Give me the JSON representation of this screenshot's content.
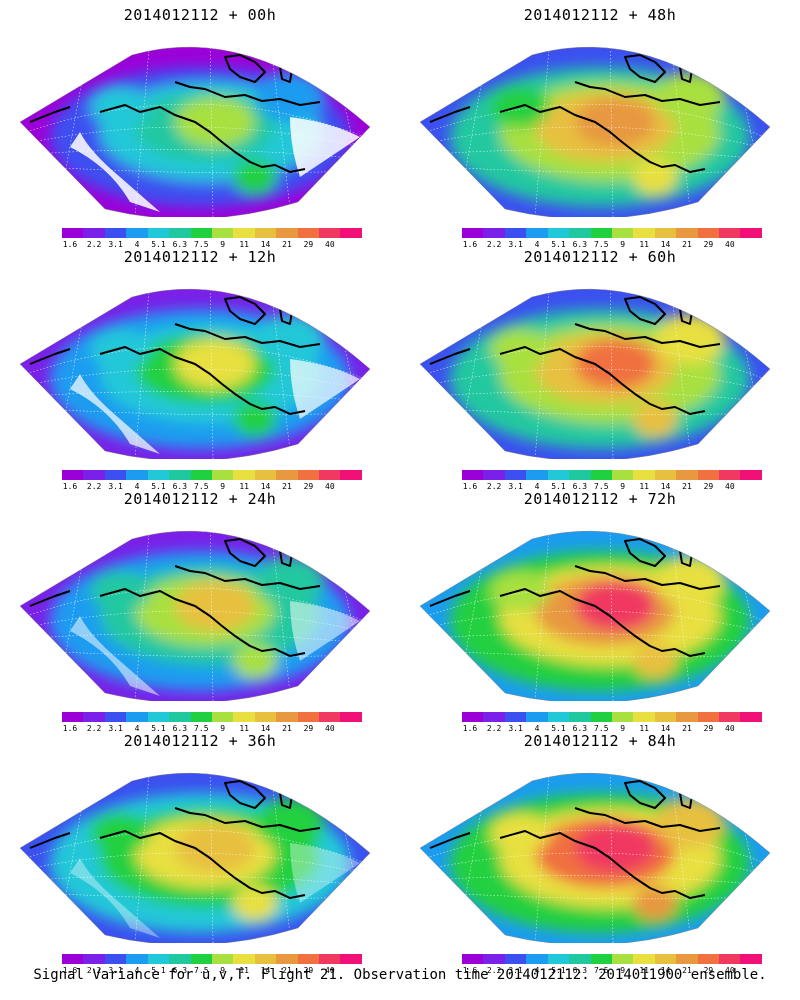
{
  "panels": [
    {
      "title": "2014012112 + 00h",
      "intensity": 0.1
    },
    {
      "title": "2014012112 + 48h",
      "intensity": 0.55
    },
    {
      "title": "2014012112 + 12h",
      "intensity": 0.2
    },
    {
      "title": "2014012112 + 60h",
      "intensity": 0.62
    },
    {
      "title": "2014012112 + 24h",
      "intensity": 0.32
    },
    {
      "title": "2014012112 + 72h",
      "intensity": 0.7
    },
    {
      "title": "2014012112 + 36h",
      "intensity": 0.42
    },
    {
      "title": "2014012112 + 84h",
      "intensity": 0.78
    }
  ],
  "colorbar": {
    "colors": [
      "#9c00d8",
      "#7a20e8",
      "#3c50f0",
      "#1c9cf0",
      "#20c8d8",
      "#20c8a0",
      "#20d040",
      "#a8e040",
      "#e8e040",
      "#e8c040",
      "#e89840",
      "#f07040",
      "#f03860",
      "#f01078"
    ],
    "labels": [
      "1.6",
      "2.2",
      "3.1",
      "4",
      "5.1",
      "6.3",
      "7.5",
      "9",
      "11",
      "14",
      "21",
      "29",
      "40"
    ]
  },
  "caption": "Signal Variance for u,v,T. Flight 21. Observation time 2014012112. 2014011900 ensemble."
}
